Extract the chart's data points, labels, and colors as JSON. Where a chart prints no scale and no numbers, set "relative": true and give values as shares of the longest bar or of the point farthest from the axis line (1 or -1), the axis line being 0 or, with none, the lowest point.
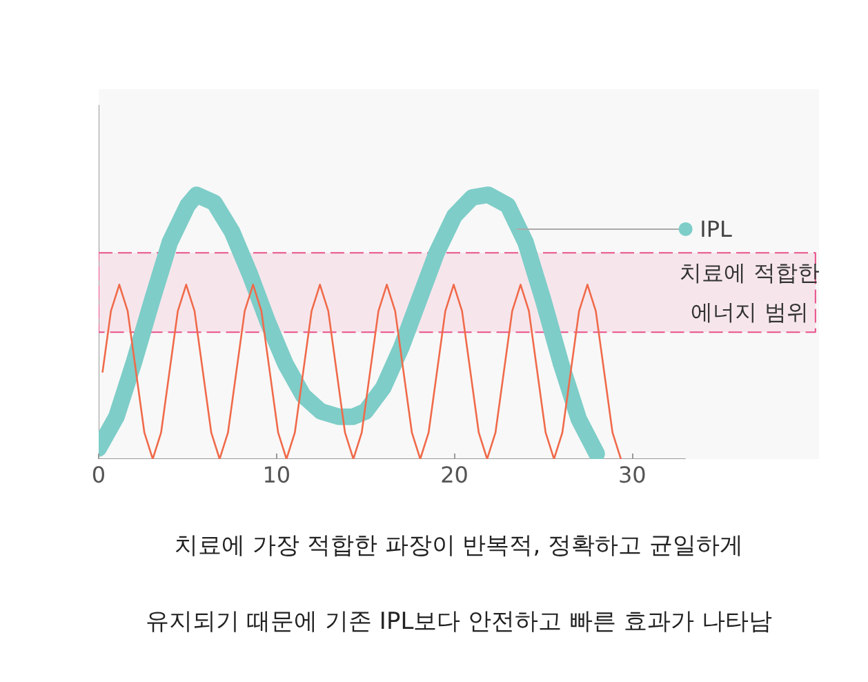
{
  "chart_data": {
    "type": "line",
    "relative": true,
    "xlim": [
      0,
      33
    ],
    "xticks": [
      0,
      10,
      20,
      30
    ],
    "grid": false,
    "legend": "right",
    "tick_labels": "x",
    "annotations": [
      "치료에 가장 적합한 파장이 반복적, 정확하고 균일하게",
      "유지되기 때문에 기존 IPL보다 안전하고 빠른 효과가 나타남"
    ],
    "bands": [
      {
        "axis": "y",
        "from": 0.48,
        "to": 0.78,
        "label": "치료에 적합한\n에너지 범위",
        "color": "#e8508a"
      }
    ],
    "series": [
      {
        "name": "IPL",
        "color": "#7ecdc8",
        "x": [
          0,
          1,
          2,
          3,
          4,
          5,
          5.5,
          6.5,
          7.5,
          8.5,
          9.5,
          10.5,
          11.5,
          12.5,
          13.5,
          14.3,
          15,
          16,
          17,
          18,
          19,
          20,
          21,
          21.9,
          23,
          24,
          25,
          26,
          27,
          28
        ],
        "values": [
          0.04,
          0.16,
          0.37,
          0.6,
          0.82,
          0.96,
          1.0,
          0.97,
          0.86,
          0.7,
          0.52,
          0.36,
          0.24,
          0.18,
          0.16,
          0.16,
          0.18,
          0.27,
          0.42,
          0.6,
          0.78,
          0.92,
          0.99,
          1.0,
          0.96,
          0.82,
          0.6,
          0.36,
          0.15,
          0.02
        ]
      },
      {
        "color": "#f06a4a",
        "x": [
          0.22,
          0.69,
          1.16,
          1.63,
          2.1,
          2.57,
          3.04,
          3.51,
          3.98,
          4.45,
          4.92,
          5.39,
          5.86,
          6.33,
          6.8,
          7.27,
          7.74,
          8.21,
          8.68,
          9.15,
          9.62,
          10.09,
          10.56,
          11.03,
          11.5,
          11.97,
          12.44,
          12.91,
          13.38,
          13.85,
          14.32,
          14.79,
          15.26,
          15.73,
          16.2,
          16.67,
          17.14,
          17.61,
          18.08,
          18.55,
          19.02,
          19.49,
          19.96,
          20.43,
          20.9,
          21.37,
          21.84,
          22.31,
          22.78,
          23.25,
          23.72,
          24.19,
          24.66,
          25.13,
          25.6,
          26.07,
          26.54,
          27.01,
          27.48,
          27.95,
          28.42,
          28.89,
          29.36
        ],
        "values": [
          0.33,
          0.56,
          0.66,
          0.56,
          0.33,
          0.1,
          0,
          0.1,
          0.33,
          0.56,
          0.66,
          0.56,
          0.33,
          0.1,
          0,
          0.1,
          0.33,
          0.56,
          0.66,
          0.56,
          0.33,
          0.1,
          0,
          0.1,
          0.33,
          0.56,
          0.66,
          0.56,
          0.33,
          0.1,
          0,
          0.1,
          0.33,
          0.56,
          0.66,
          0.56,
          0.33,
          0.1,
          0,
          0.1,
          0.33,
          0.56,
          0.66,
          0.56,
          0.33,
          0.1,
          0,
          0.1,
          0.33,
          0.56,
          0.66,
          0.56,
          0.33,
          0.1,
          0,
          0.1,
          0.33,
          0.56,
          0.66,
          0.56,
          0.33,
          0.1,
          0
        ]
      }
    ]
  }
}
